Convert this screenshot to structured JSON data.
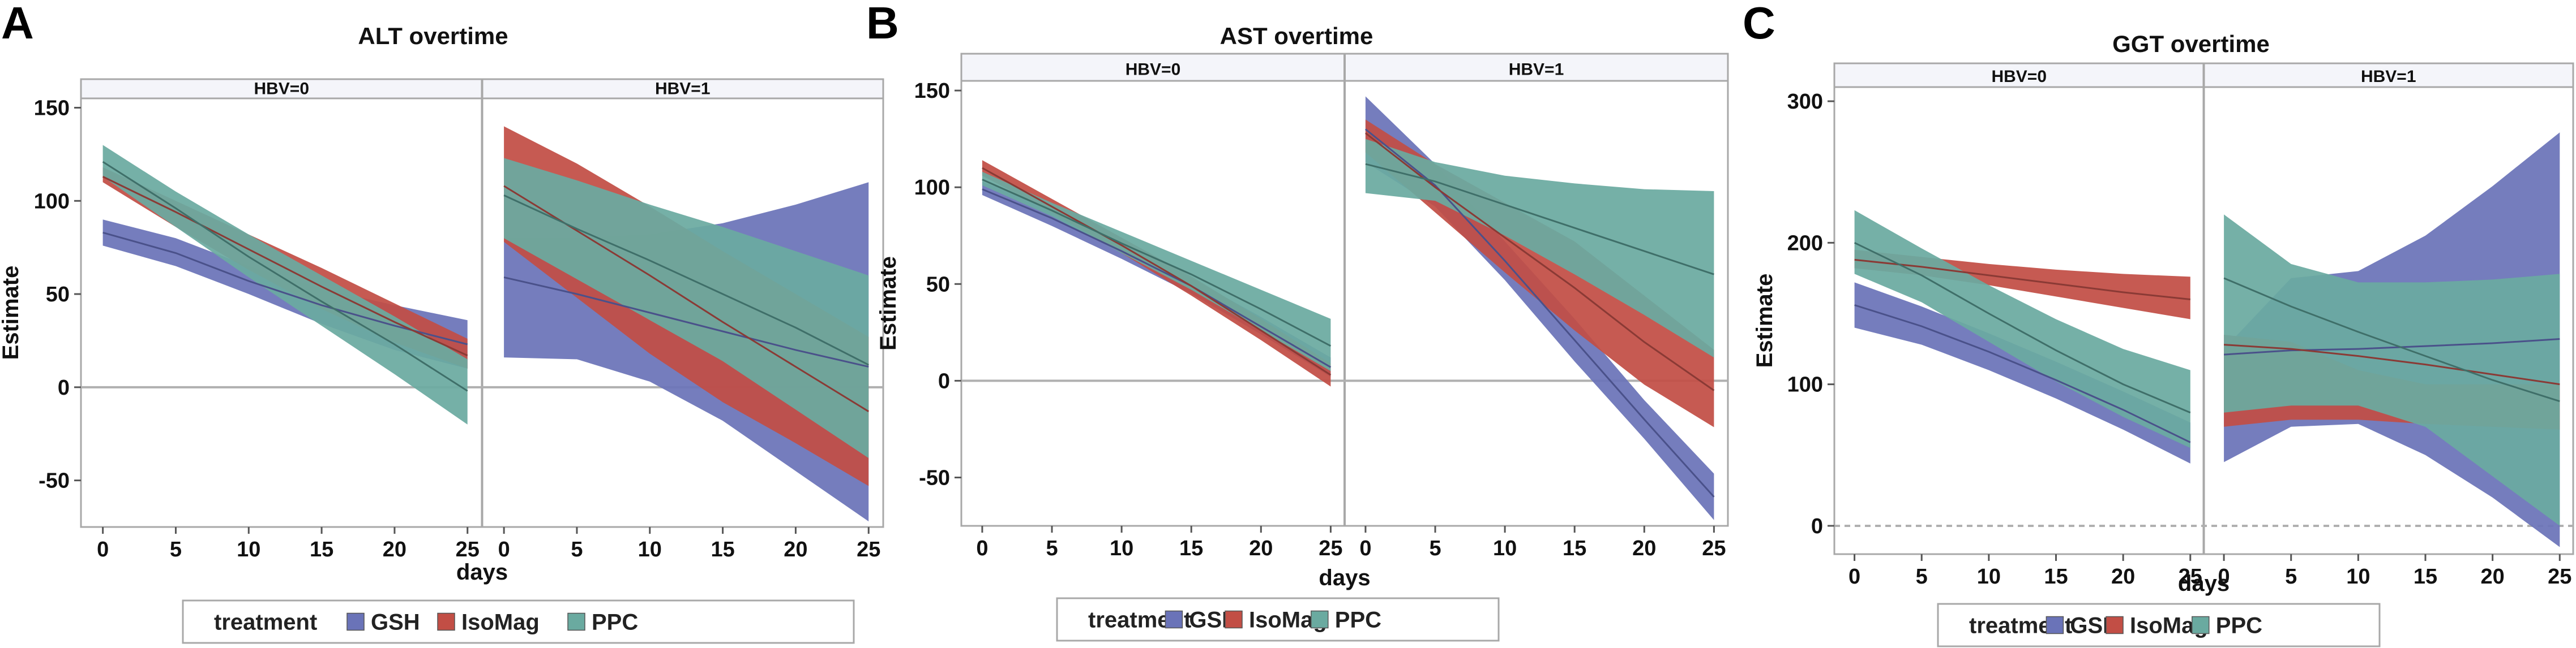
{
  "colors": {
    "GSH": "#6a73b8",
    "IsoMag": "#c24e45",
    "PPC": "#6aaaa0",
    "frame": "#a8a8a8",
    "strip_fill": "#f4f5fa",
    "zero_line": "#b0b0b0"
  },
  "legend": {
    "title": "treatment",
    "items": [
      "GSH",
      "IsoMag",
      "PPC"
    ]
  },
  "chart_data": [
    {
      "letter": "A",
      "title": "ALT overtime",
      "type": "area",
      "xlabel": "days",
      "ylabel": "Estimate",
      "ylim": [
        -75,
        155
      ],
      "yticks": [
        -50,
        0,
        50,
        100,
        150
      ],
      "xlim": [
        -1.5,
        26
      ],
      "xticks": [
        0,
        5,
        10,
        15,
        20,
        25
      ],
      "zero_line_style": "solid",
      "facets": [
        {
          "label": "HBV=0",
          "series": [
            {
              "name": "GSH",
              "x": [
                0,
                5,
                10,
                15,
                20,
                25
              ],
              "lower": [
                76,
                65,
                50,
                34,
                20,
                10
              ],
              "upper": [
                90,
                80,
                65,
                53,
                44,
                36
              ],
              "line": [
                83,
                72,
                57,
                44,
                33,
                23
              ]
            },
            {
              "name": "IsoMag",
              "x": [
                0,
                5,
                10,
                15,
                20,
                25
              ],
              "lower": [
                110,
                86,
                63,
                42,
                24,
                10
              ],
              "upper": [
                118,
                100,
                82,
                64,
                45,
                26
              ],
              "line": [
                113,
                94,
                74,
                54,
                35,
                17
              ]
            },
            {
              "name": "PPC",
              "x": [
                0,
                5,
                10,
                15,
                20,
                25
              ],
              "lower": [
                113,
                86,
                59,
                33,
                7,
                -20
              ],
              "upper": [
                130,
                105,
                82,
                60,
                38,
                15
              ],
              "line": [
                121,
                96,
                70,
                46,
                23,
                -2
              ]
            }
          ]
        },
        {
          "label": "HBV=1",
          "series": [
            {
              "name": "GSH",
              "x": [
                0,
                5,
                10,
                15,
                20,
                25
              ],
              "lower": [
                16,
                15,
                3,
                -18,
                -45,
                -72
              ],
              "upper": [
                80,
                80,
                82,
                88,
                98,
                110
              ],
              "line": [
                59,
                50,
                40,
                30,
                20,
                11
              ]
            },
            {
              "name": "IsoMag",
              "x": [
                0,
                5,
                10,
                15,
                20,
                25
              ],
              "lower": [
                78,
                48,
                18,
                -8,
                -30,
                -53
              ],
              "upper": [
                140,
                120,
                97,
                73,
                50,
                27
              ],
              "line": [
                108,
                84,
                60,
                35,
                11,
                -13
              ]
            },
            {
              "name": "PPC",
              "x": [
                0,
                5,
                10,
                15,
                20,
                25
              ],
              "lower": [
                80,
                58,
                36,
                14,
                -12,
                -38
              ],
              "upper": [
                123,
                111,
                98,
                86,
                73,
                60
              ],
              "line": [
                103,
                85,
                68,
                50,
                32,
                12
              ]
            }
          ]
        }
      ]
    },
    {
      "letter": "B",
      "title": "AST overtime",
      "type": "area",
      "xlabel": "days",
      "ylabel": "Estimate",
      "ylim": [
        -75,
        155
      ],
      "yticks": [
        -50,
        0,
        50,
        100,
        150
      ],
      "xlim": [
        -1.5,
        26
      ],
      "xticks": [
        0,
        5,
        10,
        15,
        20,
        25
      ],
      "zero_line_style": "solid",
      "facets": [
        {
          "label": "HBV=0",
          "series": [
            {
              "name": "GSH",
              "x": [
                0,
                5,
                10,
                15,
                20,
                25
              ],
              "lower": [
                96,
                80,
                63,
                45,
                24,
                2
              ],
              "upper": [
                103,
                89,
                72,
                53,
                33,
                12
              ],
              "line": [
                99,
                84,
                67,
                49,
                28,
                7
              ]
            },
            {
              "name": "IsoMag",
              "x": [
                0,
                5,
                10,
                15,
                20,
                25
              ],
              "lower": [
                106,
                87,
                66,
                44,
                21,
                -3
              ],
              "upper": [
                114,
                94,
                74,
                54,
                32,
                9
              ],
              "line": [
                110,
                90,
                70,
                49,
                26,
                3
              ]
            },
            {
              "name": "PPC",
              "x": [
                0,
                5,
                10,
                15,
                20,
                25
              ],
              "lower": [
                101,
                85,
                66,
                47,
                26,
                5
              ],
              "upper": [
                108,
                92,
                77,
                62,
                47,
                32
              ],
              "line": [
                104,
                88,
                71,
                55,
                37,
                18
              ]
            }
          ]
        },
        {
          "label": "HBV=1",
          "series": [
            {
              "name": "GSH",
              "x": [
                0,
                5,
                10,
                15,
                20,
                25
              ],
              "lower": [
                113,
                90,
                52,
                10,
                -30,
                -72
              ],
              "upper": [
                147,
                112,
                72,
                32,
                -10,
                -48
              ],
              "line": [
                130,
                101,
                62,
                21,
                -20,
                -60
              ]
            },
            {
              "name": "IsoMag",
              "x": [
                0,
                5,
                10,
                15,
                20,
                25
              ],
              "lower": [
                118,
                87,
                56,
                26,
                -2,
                -24
              ],
              "upper": [
                135,
                112,
                92,
                72,
                44,
                16
              ],
              "line": [
                128,
                100,
                74,
                48,
                20,
                -5
              ]
            },
            {
              "name": "PPC",
              "x": [
                0,
                5,
                10,
                15,
                20,
                25
              ],
              "lower": [
                97,
                93,
                75,
                55,
                34,
                12
              ],
              "upper": [
                125,
                113,
                106,
                102,
                99,
                98
              ],
              "line": [
                112,
                103,
                91,
                79,
                67,
                55
              ]
            }
          ]
        }
      ]
    },
    {
      "letter": "C",
      "title": "GGT overtime",
      "type": "area",
      "xlabel": "days",
      "ylabel": "Estimate",
      "ylim": [
        -20,
        310
      ],
      "yticks": [
        0,
        100,
        200,
        300
      ],
      "xlim": [
        -1.5,
        26
      ],
      "xticks": [
        0,
        5,
        10,
        15,
        20,
        25
      ],
      "zero_line_style": "dashed",
      "facets": [
        {
          "label": "HBV=0",
          "series": [
            {
              "name": "GSH",
              "x": [
                0,
                5,
                10,
                15,
                20,
                25
              ],
              "lower": [
                140,
                128,
                110,
                90,
                68,
                44
              ],
              "upper": [
                172,
                155,
                136,
                116,
                95,
                73
              ],
              "line": [
                156,
                141,
                123,
                103,
                82,
                59
              ]
            },
            {
              "name": "IsoMag",
              "x": [
                0,
                5,
                10,
                15,
                20,
                25
              ],
              "lower": [
                182,
                177,
                170,
                162,
                154,
                146
              ],
              "upper": [
                195,
                190,
                185,
                181,
                178,
                176
              ],
              "line": [
                188,
                183,
                177,
                171,
                165,
                160
              ]
            },
            {
              "name": "PPC",
              "x": [
                0,
                5,
                10,
                15,
                20,
                25
              ],
              "lower": [
                178,
                158,
                130,
                102,
                77,
                55
              ],
              "upper": [
                223,
                196,
                170,
                146,
                125,
                110
              ],
              "line": [
                200,
                177,
                150,
                124,
                100,
                80
              ]
            }
          ]
        },
        {
          "label": "HBV=1",
          "series": [
            {
              "name": "GSH",
              "x": [
                0,
                5,
                10,
                15,
                20,
                25
              ],
              "lower": [
                45,
                70,
                72,
                50,
                20,
                -15
              ],
              "upper": [
                125,
                175,
                180,
                205,
                240,
                278
              ],
              "line": [
                121,
                124,
                125,
                127,
                129,
                132
              ]
            },
            {
              "name": "IsoMag",
              "x": [
                0,
                5,
                10,
                15,
                20,
                25
              ],
              "lower": [
                70,
                75,
                75,
                72,
                70,
                68
              ],
              "upper": [
                135,
                130,
                110,
                100,
                100,
                100
              ],
              "line": [
                128,
                125,
                120,
                114,
                107,
                100
              ]
            },
            {
              "name": "PPC",
              "x": [
                0,
                5,
                10,
                15,
                20,
                25
              ],
              "lower": [
                80,
                85,
                85,
                70,
                35,
                0
              ],
              "upper": [
                220,
                185,
                172,
                172,
                174,
                178
              ],
              "line": [
                175,
                155,
                137,
                120,
                103,
                88
              ]
            }
          ]
        }
      ]
    }
  ]
}
